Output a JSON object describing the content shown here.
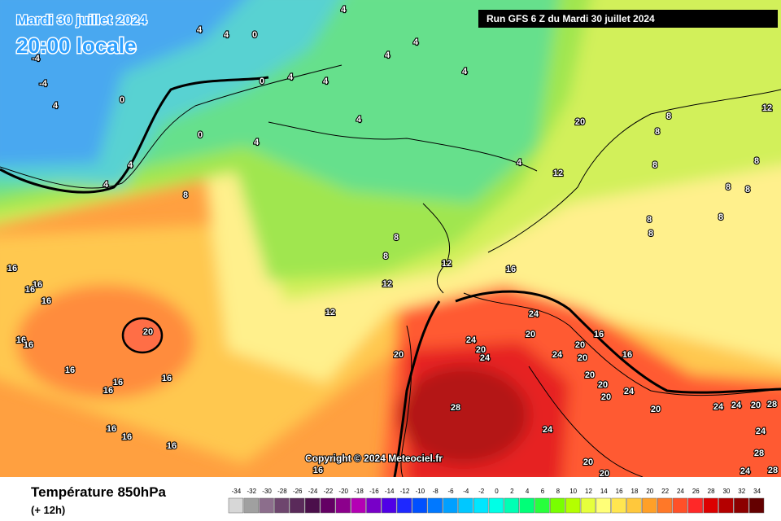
{
  "header": {
    "date": "Mardi 30 juillet 2024",
    "time": "20:00 locale",
    "run": "Run GFS 6 Z du Mardi 30 juillet 2024"
  },
  "copyright": "Copyright © 2024 Meteociel.fr",
  "footer": {
    "title": "Température 850hPa",
    "lead": "(+ 12h)"
  },
  "contour_labels": [
    4,
    4,
    0,
    4,
    4,
    4,
    4,
    4,
    4,
    0,
    0,
    4,
    -4,
    -4,
    0,
    4,
    4,
    4,
    4,
    8,
    4,
    12,
    20,
    8,
    8,
    8,
    8,
    8,
    8,
    8,
    8,
    8,
    12,
    8,
    8,
    12,
    16,
    12,
    12,
    16,
    16,
    16,
    16,
    20,
    16,
    16,
    16,
    16,
    16,
    16,
    16,
    16,
    16,
    16,
    20,
    24,
    24,
    20,
    24,
    20,
    24,
    20,
    20,
    16,
    16,
    20,
    20,
    20,
    24,
    20,
    24,
    24,
    20,
    28,
    24,
    28,
    24,
    28,
    28,
    24,
    20,
    20
  ],
  "scale": [
    {
      "value": -34,
      "color": "#d7d7d7"
    },
    {
      "value": -32,
      "color": "#a0a0a0"
    },
    {
      "value": -30,
      "color": "#8c6e8c"
    },
    {
      "value": -28,
      "color": "#6e466e"
    },
    {
      "value": -26,
      "color": "#5a2a5a"
    },
    {
      "value": -24,
      "color": "#4b0f4b"
    },
    {
      "value": -22,
      "color": "#640064"
    },
    {
      "value": -20,
      "color": "#8c008c"
    },
    {
      "value": -18,
      "color": "#b400b4"
    },
    {
      "value": -16,
      "color": "#7800c8"
    },
    {
      "value": -14,
      "color": "#5000e6"
    },
    {
      "value": -12,
      "color": "#1e28ff"
    },
    {
      "value": -10,
      "color": "#0050ff"
    },
    {
      "value": -8,
      "color": "#0078ff"
    },
    {
      "value": -6,
      "color": "#00a0ff"
    },
    {
      "value": -4,
      "color": "#00c8ff"
    },
    {
      "value": -2,
      "color": "#00e6ff"
    },
    {
      "value": 0,
      "color": "#00ffe6"
    },
    {
      "value": 2,
      "color": "#00ffb4"
    },
    {
      "value": 4,
      "color": "#00ff78"
    },
    {
      "value": 6,
      "color": "#28ff3c"
    },
    {
      "value": 8,
      "color": "#78ff00"
    },
    {
      "value": 10,
      "color": "#b4ff00"
    },
    {
      "value": 12,
      "color": "#e6ff3c"
    },
    {
      "value": 14,
      "color": "#ffff78"
    },
    {
      "value": 16,
      "color": "#ffe650"
    },
    {
      "value": 18,
      "color": "#ffc83c"
    },
    {
      "value": 20,
      "color": "#ffa028"
    },
    {
      "value": 22,
      "color": "#ff7828"
    },
    {
      "value": 24,
      "color": "#ff5028"
    },
    {
      "value": 26,
      "color": "#ff2828"
    },
    {
      "value": 28,
      "color": "#dc0000"
    },
    {
      "value": 30,
      "color": "#b40000"
    },
    {
      "value": 32,
      "color": "#8c0000"
    },
    {
      "value": 34,
      "color": "#640000"
    }
  ]
}
